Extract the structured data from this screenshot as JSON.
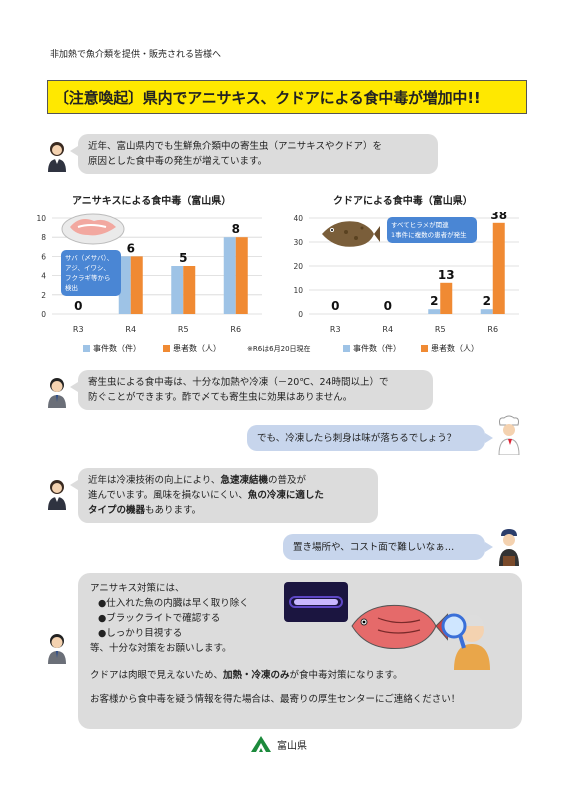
{
  "header": {
    "subtitle": "非加熱で魚介類を提供・販売される皆様へ",
    "banner": "〔注意喚起〕県内でアニサキス、クドアによる食中毒が増加中!!"
  },
  "intro": {
    "line1": "近年、富山県内でも生鮮魚介類中の寄生虫（アニサキスやクドア）を",
    "line2": "原因とした食中毒の発生が増えています。"
  },
  "chart_data": [
    {
      "type": "bar",
      "title": "アニサキスによる食中毒（富山県）",
      "categories": [
        "R3",
        "R4",
        "R5",
        "R6"
      ],
      "series": [
        {
          "name": "事件数（件）",
          "values": [
            0,
            6,
            5,
            8
          ],
          "color": "#9ec3e6"
        },
        {
          "name": "患者数（人）",
          "values": [
            0,
            6,
            5,
            8
          ],
          "color": "#f08a33"
        }
      ],
      "data_labels": [
        "0",
        "6",
        "5",
        "8"
      ],
      "yticks": [
        "0",
        "2",
        "4",
        "6",
        "8",
        "10"
      ],
      "ylim": [
        0,
        10
      ],
      "callout": [
        "サバ（〆サバ）、",
        "アジ、イワシ、",
        "フクラギ等から",
        "検出"
      ]
    },
    {
      "type": "bar",
      "title": "クドアによる食中毒（富山県）",
      "categories": [
        "R3",
        "R4",
        "R5",
        "R6"
      ],
      "series": [
        {
          "name": "事件数（件）",
          "values": [
            0,
            0,
            2,
            2
          ],
          "color": "#9ec3e6"
        },
        {
          "name": "患者数（人）",
          "values": [
            0,
            0,
            13,
            38
          ],
          "color": "#f08a33"
        }
      ],
      "data_labels": {
        "patients": [
          "0",
          "0",
          "13",
          "38"
        ],
        "cases": [
          "",
          "",
          "2",
          "2"
        ]
      },
      "yticks": [
        "0",
        "10",
        "20",
        "30",
        "40"
      ],
      "ylim": [
        0,
        40
      ],
      "callout": [
        "すべてヒラメが関連",
        "1事件に複数の患者が発生"
      ]
    }
  ],
  "legend": {
    "cases": "事件数（件）",
    "patients": "患者数（人）",
    "note": "※R6は6月20日現在"
  },
  "dialog": {
    "official1": {
      "line1": "寄生虫による食中毒は、十分な加熱や冷凍（－20℃、24時間以上）で",
      "line2": "防ぐことができます。酢で〆ても寄生虫に効果はありません。"
    },
    "chef1": "でも、冷凍したら刺身は味が落ちるでしょう？",
    "official2": {
      "line1": "近年は冷凍技術の向上により、",
      "line1_bold": "急速凍結機",
      "line1_end": "の普及が",
      "line2": "進んでいます。風味を損ないにくい、",
      "line2_bold": "魚の冷凍に適した",
      "line3_bold": "タイプの機器",
      "line3_end": "もあります。"
    },
    "shop1": "置き場所や、コスト面で難しいなぁ…"
  },
  "measures": {
    "heading": "アニサキス対策には、",
    "items": [
      "●仕入れた魚の内臓は早く取り除く",
      "●ブラックライトで確認する",
      "●しっかり目視する"
    ],
    "closing": "等、十分な対策をお願いします。",
    "kudoa_start": "クドアは肉眼で見えないため、",
    "kudoa_bold": "加熱・冷凍のみ",
    "kudoa_end": "が食中毒対策になります。",
    "contact": "お客様から食中毒を疑う情報を得た場合は、最寄りの厚生センターにご連絡ください！"
  },
  "footer": {
    "org": "富山県"
  },
  "colors": {
    "banner": "#ffe800",
    "bar_cases": "#9ec3e6",
    "bar_patients": "#f08a33",
    "bubble_blue": "#c7d5ec",
    "bubble_gray": "#dcdcdc"
  }
}
